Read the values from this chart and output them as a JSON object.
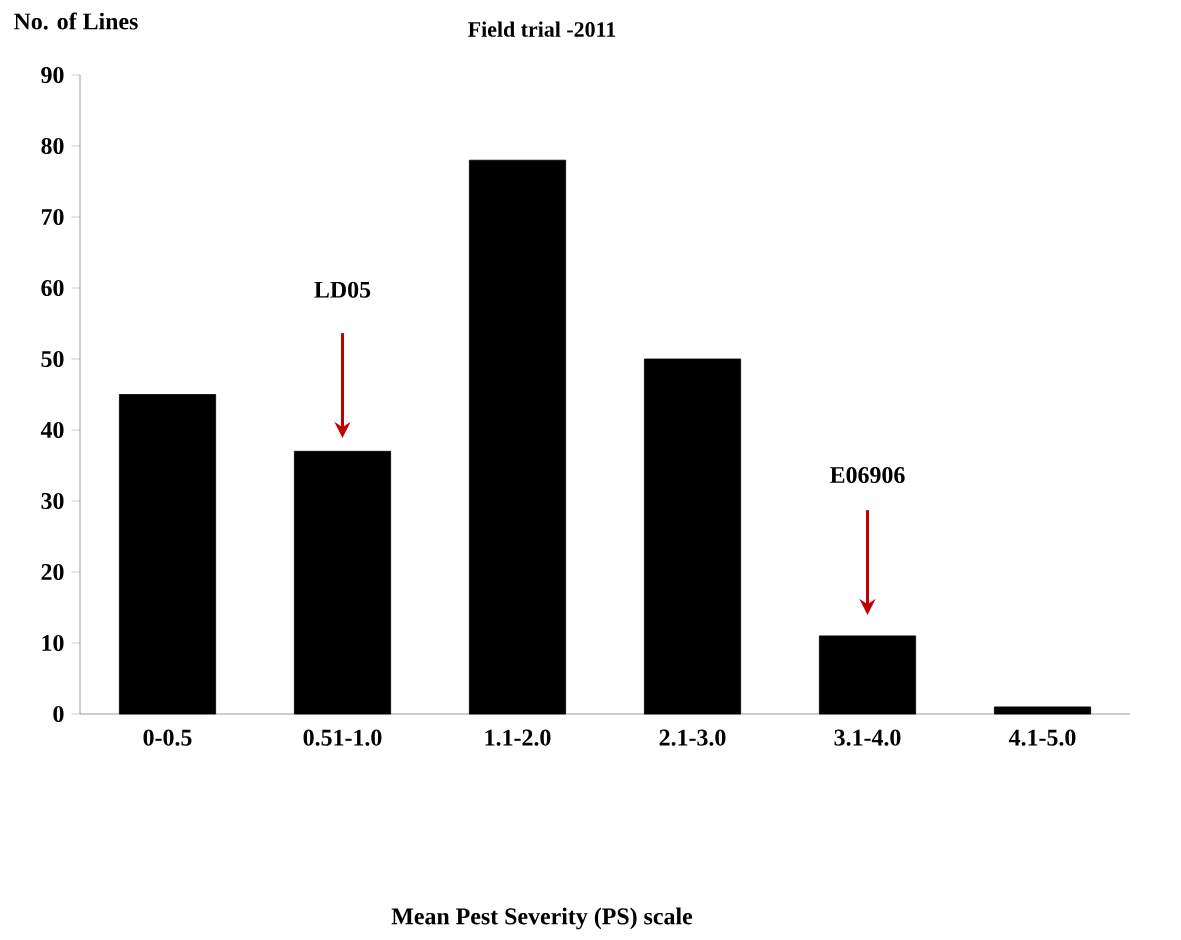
{
  "chart_data": {
    "type": "bar",
    "title": "Field trial -2011",
    "ylabel": "No. of Lines",
    "categories": [
      "0-0.5",
      "0.51-1.0",
      "1.1-2.0",
      "2.1-3.0",
      "3.1-4.0",
      "4.1-5.0"
    ],
    "values": [
      45,
      37,
      78,
      50,
      11,
      1
    ],
    "color": "#000000",
    "ylim": [
      0,
      90
    ],
    "yticks": [
      0,
      10,
      20,
      30,
      40,
      50,
      60,
      70,
      80,
      90
    ],
    "grid": false,
    "annotations": [
      "LD05",
      "E06906",
      "Mean Pest Severity (PS) scale"
    ]
  }
}
